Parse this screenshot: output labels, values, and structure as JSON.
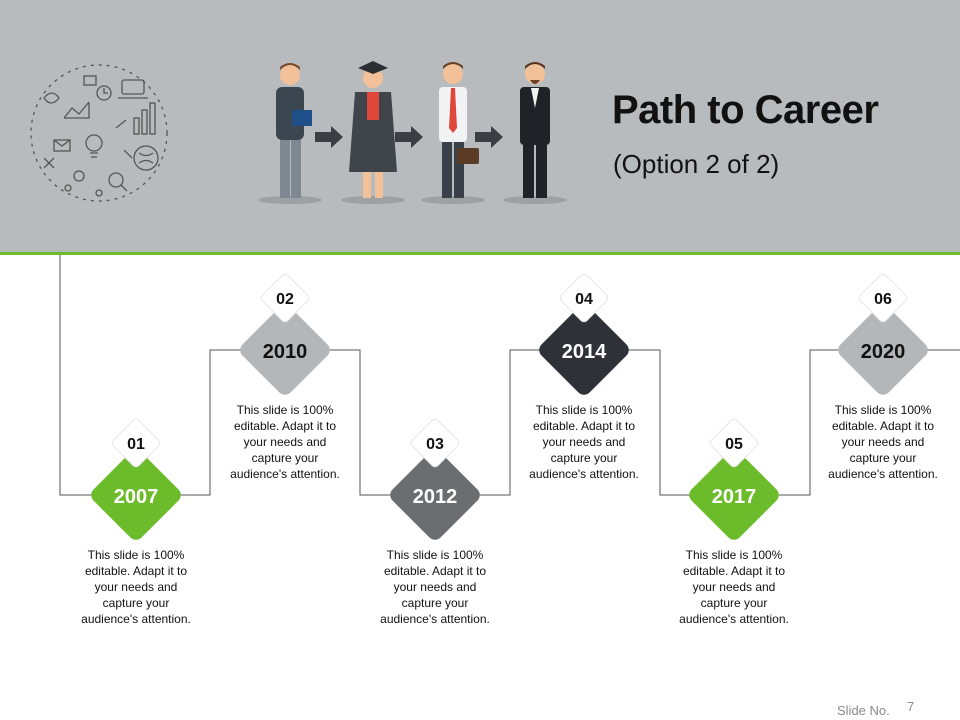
{
  "slide": {
    "title": "Path to Career",
    "subtitle": "(Option 2 of 2)",
    "slide_no_label": "Slide No.",
    "slide_number": "7"
  },
  "colors": {
    "header_bg": "#b8bbbd",
    "accent_green": "#6cbb2a",
    "light_gray": "#b4b7b9",
    "mid_gray": "#6b6e71",
    "dark": "#2e3238"
  },
  "milestones": [
    {
      "number": "01",
      "year": "2007",
      "color": "#6cbb2a",
      "text": "This slide is 100% editable. Adapt it to your needs and capture your audience's attention."
    },
    {
      "number": "02",
      "year": "2010",
      "color": "#b4b7b9",
      "text": "This slide is 100% editable. Adapt it to your needs and capture your audience's attention."
    },
    {
      "number": "03",
      "year": "2012",
      "color": "#6b6e71",
      "text": "This slide is 100% editable. Adapt it to your needs and capture your audience's attention."
    },
    {
      "number": "04",
      "year": "2014",
      "color": "#2e3238",
      "text": "This slide is 100% editable. Adapt it to your needs and capture your audience's attention."
    },
    {
      "number": "05",
      "year": "2017",
      "color": "#6cbb2a",
      "text": "This slide is 100% editable. Adapt it to your needs and capture your audience's attention."
    },
    {
      "number": "06",
      "year": "2020",
      "color": "#b4b7b9",
      "text": "This slide is 100% editable. Adapt it to your needs and capture your audience's attention."
    }
  ]
}
